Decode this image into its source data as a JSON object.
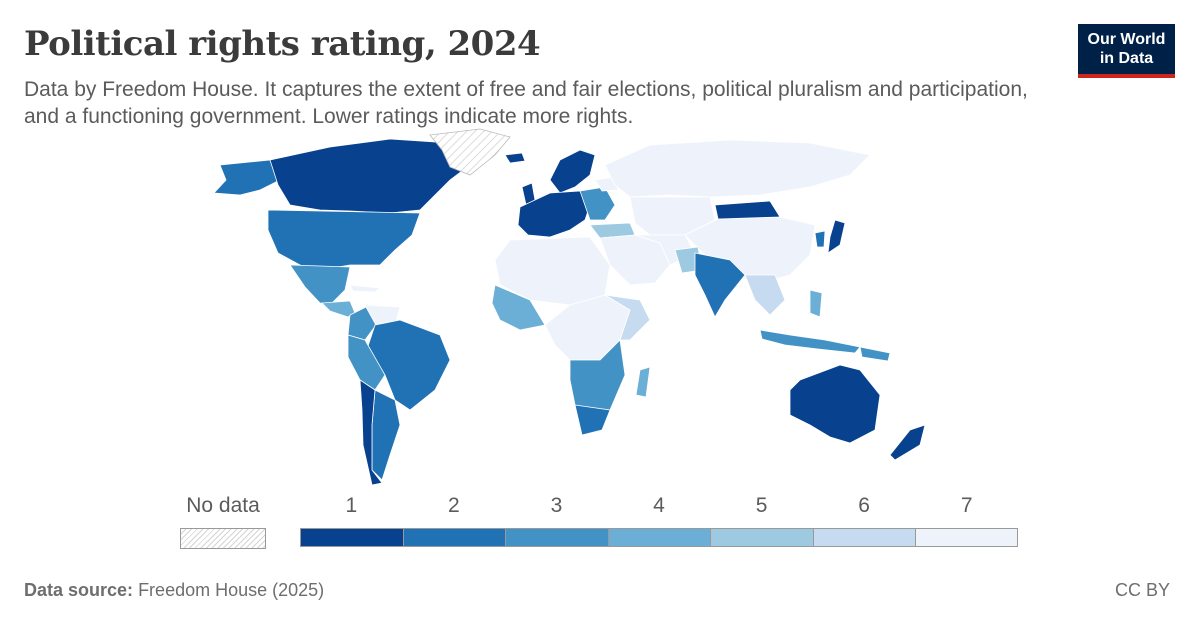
{
  "title": "Political rights rating, 2024",
  "subtitle": "Data by Freedom House. It captures the extent of free and fair elections, political pluralism and participation, and a functioning government. Lower ratings indicate more rights.",
  "logo": {
    "line1": "Our World",
    "line2": "in Data"
  },
  "legend": {
    "no_data_label": "No data",
    "bins": [
      {
        "label": "1",
        "color": "#08418e"
      },
      {
        "label": "2",
        "color": "#2171b5"
      },
      {
        "label": "3",
        "color": "#4292c6"
      },
      {
        "label": "4",
        "color": "#6baed6"
      },
      {
        "label": "5",
        "color": "#9ecae1"
      },
      {
        "label": "6",
        "color": "#c6dbef"
      },
      {
        "label": "7",
        "color": "#eef3fb"
      }
    ]
  },
  "map": {
    "regions": [
      {
        "name": "Canada",
        "rating": 1
      },
      {
        "name": "United States",
        "rating": 2
      },
      {
        "name": "Mexico",
        "rating": 3
      },
      {
        "name": "Greenland",
        "rating": null
      },
      {
        "name": "Brazil",
        "rating": 2
      },
      {
        "name": "Argentina",
        "rating": 2
      },
      {
        "name": "Chile",
        "rating": 1
      },
      {
        "name": "Venezuela",
        "rating": 7
      },
      {
        "name": "Western Europe",
        "rating": 1
      },
      {
        "name": "Russia",
        "rating": 7
      },
      {
        "name": "China",
        "rating": 7
      },
      {
        "name": "Mongolia",
        "rating": 1
      },
      {
        "name": "India",
        "rating": 2
      },
      {
        "name": "Japan",
        "rating": 1
      },
      {
        "name": "Australia",
        "rating": 1
      },
      {
        "name": "New Zealand",
        "rating": 1
      },
      {
        "name": "South Africa",
        "rating": 2
      },
      {
        "name": "Saudi Arabia",
        "rating": 7
      },
      {
        "name": "Sahara region",
        "rating": 7
      }
    ]
  },
  "footer": {
    "source_label": "Data source:",
    "source_value": "Freedom House (2025)",
    "license": "CC BY"
  }
}
